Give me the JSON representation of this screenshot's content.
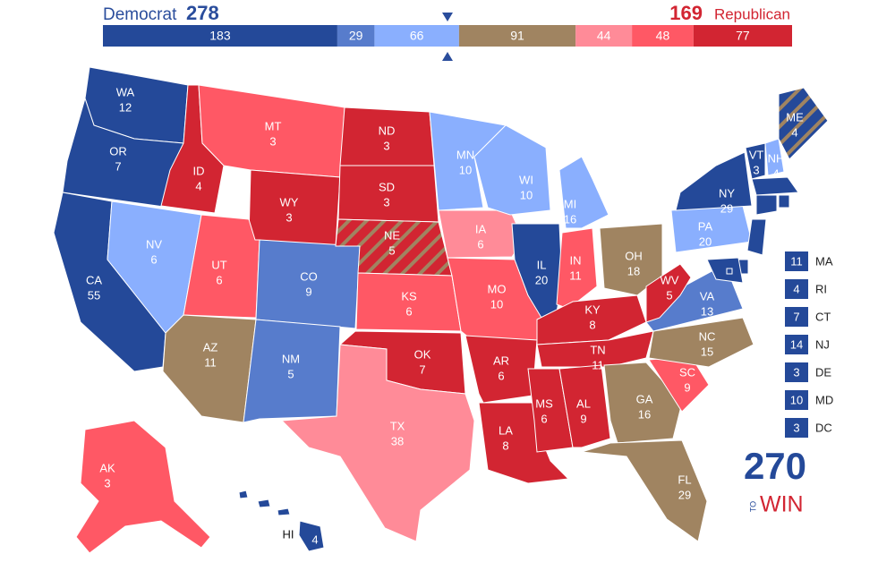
{
  "header": {
    "dem_label": "Democrat",
    "dem_total": 278,
    "rep_total": 169,
    "rep_label": "Republican"
  },
  "bar": [
    {
      "value": 183,
      "color": "#244999"
    },
    {
      "value": 29,
      "color": "#577ccc"
    },
    {
      "value": 66,
      "color": "#8aaffe"
    },
    {
      "value": 91,
      "color": "#a08461"
    },
    {
      "value": 44,
      "color": "#ff8b98"
    },
    {
      "value": 48,
      "color": "#ff5865"
    },
    {
      "value": 77,
      "color": "#d22532"
    }
  ],
  "states": [
    {
      "abbr": "WA",
      "votes": 12,
      "color": "#244999"
    },
    {
      "abbr": "OR",
      "votes": 7,
      "color": "#244999"
    },
    {
      "abbr": "CA",
      "votes": 55,
      "color": "#244999"
    },
    {
      "abbr": "ID",
      "votes": 4,
      "color": "#d22532"
    },
    {
      "abbr": "NV",
      "votes": 6,
      "color": "#8aaffe"
    },
    {
      "abbr": "MT",
      "votes": 3,
      "color": "#ff5865"
    },
    {
      "abbr": "WY",
      "votes": 3,
      "color": "#d22532"
    },
    {
      "abbr": "UT",
      "votes": 6,
      "color": "#ff5865"
    },
    {
      "abbr": "AZ",
      "votes": 11,
      "color": "#a08461"
    },
    {
      "abbr": "CO",
      "votes": 9,
      "color": "#577ccc"
    },
    {
      "abbr": "NM",
      "votes": 5,
      "color": "#577ccc"
    },
    {
      "abbr": "ND",
      "votes": 3,
      "color": "#d22532"
    },
    {
      "abbr": "SD",
      "votes": 3,
      "color": "#d22532"
    },
    {
      "abbr": "NE",
      "votes": 5,
      "color": "#d22532",
      "stripe": "#a08461"
    },
    {
      "abbr": "KS",
      "votes": 6,
      "color": "#ff5865"
    },
    {
      "abbr": "OK",
      "votes": 7,
      "color": "#d22532"
    },
    {
      "abbr": "TX",
      "votes": 38,
      "color": "#ff8b98"
    },
    {
      "abbr": "MN",
      "votes": 10,
      "color": "#8aaffe"
    },
    {
      "abbr": "IA",
      "votes": 6,
      "color": "#ff8b98"
    },
    {
      "abbr": "MO",
      "votes": 10,
      "color": "#ff5865"
    },
    {
      "abbr": "AR",
      "votes": 6,
      "color": "#d22532"
    },
    {
      "abbr": "LA",
      "votes": 8,
      "color": "#d22532"
    },
    {
      "abbr": "WI",
      "votes": 10,
      "color": "#8aaffe"
    },
    {
      "abbr": "IL",
      "votes": 20,
      "color": "#244999"
    },
    {
      "abbr": "MI",
      "votes": 16,
      "color": "#8aaffe"
    },
    {
      "abbr": "IN",
      "votes": 11,
      "color": "#ff5865"
    },
    {
      "abbr": "OH",
      "votes": 18,
      "color": "#a08461"
    },
    {
      "abbr": "KY",
      "votes": 8,
      "color": "#d22532"
    },
    {
      "abbr": "TN",
      "votes": 11,
      "color": "#d22532"
    },
    {
      "abbr": "MS",
      "votes": 6,
      "color": "#d22532"
    },
    {
      "abbr": "AL",
      "votes": 9,
      "color": "#d22532"
    },
    {
      "abbr": "GA",
      "votes": 16,
      "color": "#a08461"
    },
    {
      "abbr": "FL",
      "votes": 29,
      "color": "#a08461"
    },
    {
      "abbr": "SC",
      "votes": 9,
      "color": "#ff5865"
    },
    {
      "abbr": "NC",
      "votes": 15,
      "color": "#a08461"
    },
    {
      "abbr": "VA",
      "votes": 13,
      "color": "#577ccc"
    },
    {
      "abbr": "WV",
      "votes": 5,
      "color": "#d22532"
    },
    {
      "abbr": "PA",
      "votes": 20,
      "color": "#8aaffe"
    },
    {
      "abbr": "NY",
      "votes": 29,
      "color": "#244999"
    },
    {
      "abbr": "VT",
      "votes": 3,
      "color": "#244999"
    },
    {
      "abbr": "NH",
      "votes": 4,
      "color": "#8aaffe"
    },
    {
      "abbr": "ME",
      "votes": 4,
      "color": "#244999",
      "stripe": "#a08461"
    },
    {
      "abbr": "MA",
      "votes": 11,
      "color": "#244999"
    },
    {
      "abbr": "RI",
      "votes": 4,
      "color": "#244999"
    },
    {
      "abbr": "CT",
      "votes": 7,
      "color": "#244999"
    },
    {
      "abbr": "NJ",
      "votes": 14,
      "color": "#244999"
    },
    {
      "abbr": "DE",
      "votes": 3,
      "color": "#244999"
    },
    {
      "abbr": "MD",
      "votes": 10,
      "color": "#244999"
    },
    {
      "abbr": "DC",
      "votes": 3,
      "color": "#244999"
    },
    {
      "abbr": "AK",
      "votes": 3,
      "color": "#ff5865"
    },
    {
      "abbr": "HI",
      "votes": 4,
      "color": "#244999"
    }
  ],
  "logo": {
    "number": "270",
    "to": "TO",
    "win": "WIN"
  }
}
